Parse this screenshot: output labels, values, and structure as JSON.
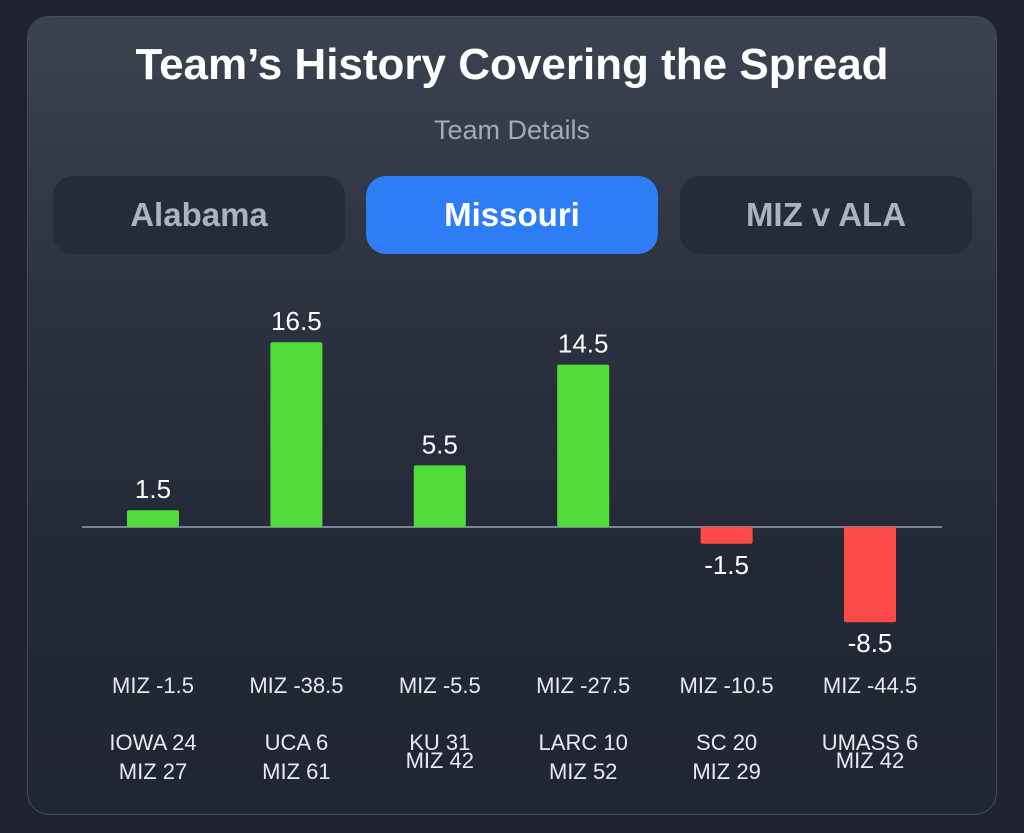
{
  "header": {
    "title": "Team’s History Covering the Spread",
    "subtitle": "Team Details"
  },
  "tabs": [
    {
      "label": "Alabama",
      "active": false
    },
    {
      "label": "Missouri",
      "active": true
    },
    {
      "label": "MIZ v ALA",
      "active": false
    }
  ],
  "colors": {
    "positive": "#52dc3a",
    "negative": "#fd4a48",
    "accent": "#2f7df6"
  },
  "chart_data": {
    "type": "bar",
    "title": "Team’s History Covering the Spread",
    "categories": [
      "IOWA 24 / MIZ 27",
      "UCA 6 / MIZ 61",
      "KU 31 / MIZ 42",
      "LARC 10 / MIZ 52",
      "SC 20 / MIZ 29",
      "UMASS 6 / MIZ 42"
    ],
    "spreads": [
      "MIZ -1.5",
      "MIZ -38.5",
      "MIZ -5.5",
      "MIZ -27.5",
      "MIZ -10.5",
      "MIZ -44.5"
    ],
    "scores": [
      [
        "IOWA 24",
        "MIZ 27"
      ],
      [
        "UCA 6",
        "MIZ 61"
      ],
      [
        "KU 31",
        "MIZ 42"
      ],
      [
        "LARC 10",
        "MIZ 52"
      ],
      [
        "SC 20",
        "MIZ 29"
      ],
      [
        "UMASS 6",
        "MIZ 42"
      ]
    ],
    "values": [
      1.5,
      16.5,
      5.5,
      14.5,
      -1.5,
      -8.5
    ],
    "value_labels": [
      "1.5",
      "16.5",
      "5.5",
      "14.5",
      "-1.5",
      "-8.5"
    ],
    "xlabel": "",
    "ylabel": "",
    "grid": false
  }
}
